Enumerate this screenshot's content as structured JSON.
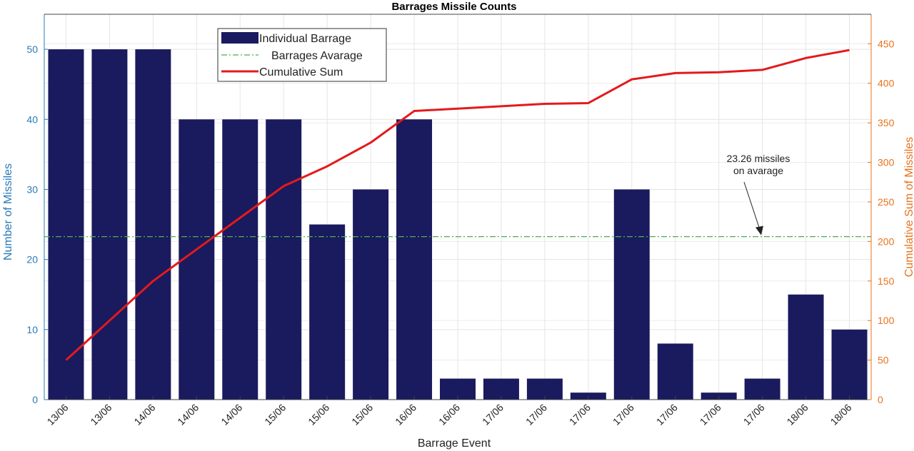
{
  "chart_data": {
    "type": "bar",
    "title": "Barrages Missile Counts",
    "xlabel": "Barrage Event",
    "ylabel": "Number of Missiles",
    "y2label": "Cumulative Sum of Missiles",
    "categories": [
      "13/06",
      "13/06",
      "14/06",
      "14/06",
      "14/06",
      "15/06",
      "15/06",
      "15/06",
      "16/06",
      "16/06",
      "17/06",
      "17/06",
      "17/06",
      "17/06",
      "17/06",
      "17/06",
      "17/06",
      "18/06",
      "18/06"
    ],
    "series": [
      {
        "name": "Individual Barrage",
        "type": "bar",
        "axis": "left",
        "color": "#1a1a5e",
        "values": [
          50,
          50,
          50,
          40,
          40,
          40,
          25,
          30,
          40,
          3,
          3,
          3,
          1,
          30,
          8,
          1,
          3,
          15,
          10
        ]
      },
      {
        "name": "Cumulative Sum",
        "type": "line",
        "axis": "right",
        "color": "#e31a1c",
        "values": [
          50,
          100,
          150,
          190,
          230,
          270,
          295,
          325,
          365,
          368,
          371,
          374,
          375,
          405,
          413,
          414,
          417,
          432,
          442
        ]
      }
    ],
    "average": {
      "name": "Barrages Avarage",
      "value": 23.26,
      "color": "#4daf4a"
    },
    "annotation": {
      "lines": [
        "23.26 missiles",
        "on avarage"
      ]
    },
    "ylim": [
      0,
      55
    ],
    "y2lim": [
      0,
      487.3
    ],
    "yticks": [
      0,
      10,
      20,
      30,
      40,
      50
    ],
    "y2ticks": [
      0,
      50,
      100,
      150,
      200,
      250,
      300,
      350,
      400,
      450
    ],
    "left_axis_color": "#2a7ab8",
    "right_axis_color": "#e8721c",
    "grid": true,
    "legend_position": "top-center"
  }
}
